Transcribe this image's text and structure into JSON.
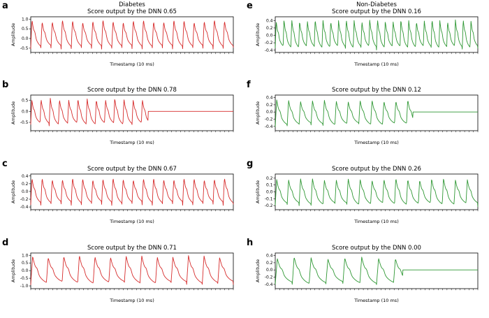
{
  "figure": {
    "xlabel": "Timestamp (10 ms)",
    "ylabel": "Amplitude",
    "left_column_header": "Diabetes",
    "right_column_header": "Non-Diabetes",
    "title_prefix": "Score output by the DNN",
    "colors": {
      "diabetes": "#d62b2b",
      "non_diabetes": "#2e9733",
      "axis": "#000000"
    }
  },
  "chart_data": [
    {
      "panel": "a",
      "type": "line",
      "col": 0,
      "column_header": "Diabetes",
      "title": "Score output by the DNN  0.65",
      "score": "0.65",
      "color": "#d62b2b",
      "ylim": [
        -0.72,
        1.12
      ],
      "yticks": [
        1.0,
        0.5,
        0.0,
        -0.5
      ],
      "ytick_labels": [
        "1.0",
        "0.5",
        "0.0",
        "-0.5"
      ],
      "cycles": 20,
      "amp_max": 1.0,
      "amp_min": -0.55,
      "flat_from": null,
      "baseline": 0,
      "seed": 1,
      "xlabel": "Timestamp (10 ms)",
      "ylabel": "Amplitude",
      "grid": false,
      "legend": "none"
    },
    {
      "panel": "b",
      "type": "line",
      "col": 0,
      "column_header": null,
      "title": "Score output by the DNN  0.78",
      "score": "0.78",
      "color": "#d62b2b",
      "ylim": [
        -0.88,
        0.74
      ],
      "yticks": [
        0.5,
        0.0,
        -0.5
      ],
      "ytick_labels": [
        "0.5",
        "0.0",
        "-0.5"
      ],
      "cycles": 22,
      "amp_max": 0.6,
      "amp_min": -0.7,
      "flat_from": 0.58,
      "baseline": 0,
      "seed": 2,
      "xlabel": "Timestamp (10 ms)",
      "ylabel": "Amplitude",
      "grid": false,
      "legend": "none"
    },
    {
      "panel": "c",
      "type": "line",
      "col": 0,
      "column_header": null,
      "title": "Score output by the DNN  0.67",
      "score": "0.67",
      "color": "#d62b2b",
      "ylim": [
        -0.47,
        0.45
      ],
      "yticks": [
        0.4,
        0.2,
        0.0,
        -0.2,
        -0.4
      ],
      "ytick_labels": [
        "0.4",
        "0.2",
        "0.0",
        "-0.2",
        "-0.4"
      ],
      "cycles": 20,
      "amp_max": 0.36,
      "amp_min": -0.36,
      "flat_from": null,
      "baseline": 0,
      "seed": 3,
      "xlabel": "Timestamp (10 ms)",
      "ylabel": "Amplitude",
      "grid": false,
      "legend": "none"
    },
    {
      "panel": "d",
      "type": "line",
      "col": 0,
      "column_header": null,
      "title": "Score output by the DNN  0.71",
      "score": "0.71",
      "color": "#d62b2b",
      "ylim": [
        -1.18,
        1.15
      ],
      "yticks": [
        1.0,
        0.5,
        0.0,
        -0.5,
        -1.0
      ],
      "ytick_labels": [
        "1.0",
        "0.5",
        "0.0",
        "-0.5",
        "-1.0"
      ],
      "cycles": 13,
      "amp_max": 1.0,
      "amp_min": -1.0,
      "flat_from": null,
      "baseline": 0,
      "seed": 4,
      "xlabel": "Timestamp (10 ms)",
      "ylabel": "Amplitude",
      "grid": false,
      "legend": "none"
    },
    {
      "panel": "e",
      "type": "line",
      "col": 1,
      "column_header": "Non-Diabetes",
      "title": "Score output by the DNN  0.16",
      "score": "0.16",
      "color": "#2e9733",
      "ylim": [
        -0.46,
        0.5
      ],
      "yticks": [
        0.4,
        0.2,
        0.0,
        -0.2,
        -0.4
      ],
      "ytick_labels": [
        "0.4",
        "0.2",
        "0.0",
        "-0.2",
        "-0.4"
      ],
      "cycles": 26,
      "amp_max": 0.44,
      "amp_min": -0.4,
      "flat_from": null,
      "baseline": 0,
      "seed": 5,
      "xlabel": "Timestamp (10 ms)",
      "ylabel": "Amplitude",
      "grid": false,
      "legend": "none"
    },
    {
      "panel": "f",
      "type": "line",
      "col": 1,
      "column_header": null,
      "title": "Score output by the DNN  0.12",
      "score": "0.12",
      "color": "#2e9733",
      "ylim": [
        -0.52,
        0.47
      ],
      "yticks": [
        0.4,
        0.2,
        0.0,
        -0.2,
        -0.4
      ],
      "ytick_labels": [
        "0.4",
        "0.2",
        "0.0",
        "-0.2",
        "-0.4"
      ],
      "cycles": 17,
      "amp_max": 0.34,
      "amp_min": -0.42,
      "flat_from": 0.68,
      "baseline": 0,
      "seed": 6,
      "xlabel": "Timestamp (10 ms)",
      "ylabel": "Amplitude",
      "grid": false,
      "legend": "none"
    },
    {
      "panel": "g",
      "type": "line",
      "col": 1,
      "column_header": null,
      "title": "Score output by the DNN  0.26",
      "score": "0.26",
      "color": "#2e9733",
      "ylim": [
        -0.26,
        0.26
      ],
      "yticks": [
        0.2,
        0.1,
        0.0,
        -0.1,
        -0.2
      ],
      "ytick_labels": [
        "0.2",
        "0.1",
        "0.0",
        "-0.1",
        "-0.2"
      ],
      "cycles": 17,
      "amp_max": 0.2,
      "amp_min": -0.22,
      "flat_from": null,
      "baseline": 0,
      "seed": 7,
      "xlabel": "Timestamp (10 ms)",
      "ylabel": "Amplitude",
      "grid": false,
      "legend": "none"
    },
    {
      "panel": "h",
      "type": "line",
      "col": 1,
      "column_header": null,
      "title": "Score output by the DNN  0.00",
      "score": "0.00",
      "color": "#2e9733",
      "ylim": [
        -0.52,
        0.47
      ],
      "yticks": [
        0.4,
        0.2,
        0.0,
        -0.2,
        -0.4
      ],
      "ytick_labels": [
        "0.4",
        "0.2",
        "0.0",
        "-0.2",
        "-0.4"
      ],
      "cycles": 12,
      "amp_max": 0.36,
      "amp_min": -0.45,
      "flat_from": 0.63,
      "baseline": 0,
      "seed": 8,
      "xlabel": "Timestamp (10 ms)",
      "ylabel": "Amplitude",
      "grid": false,
      "legend": "none"
    }
  ]
}
